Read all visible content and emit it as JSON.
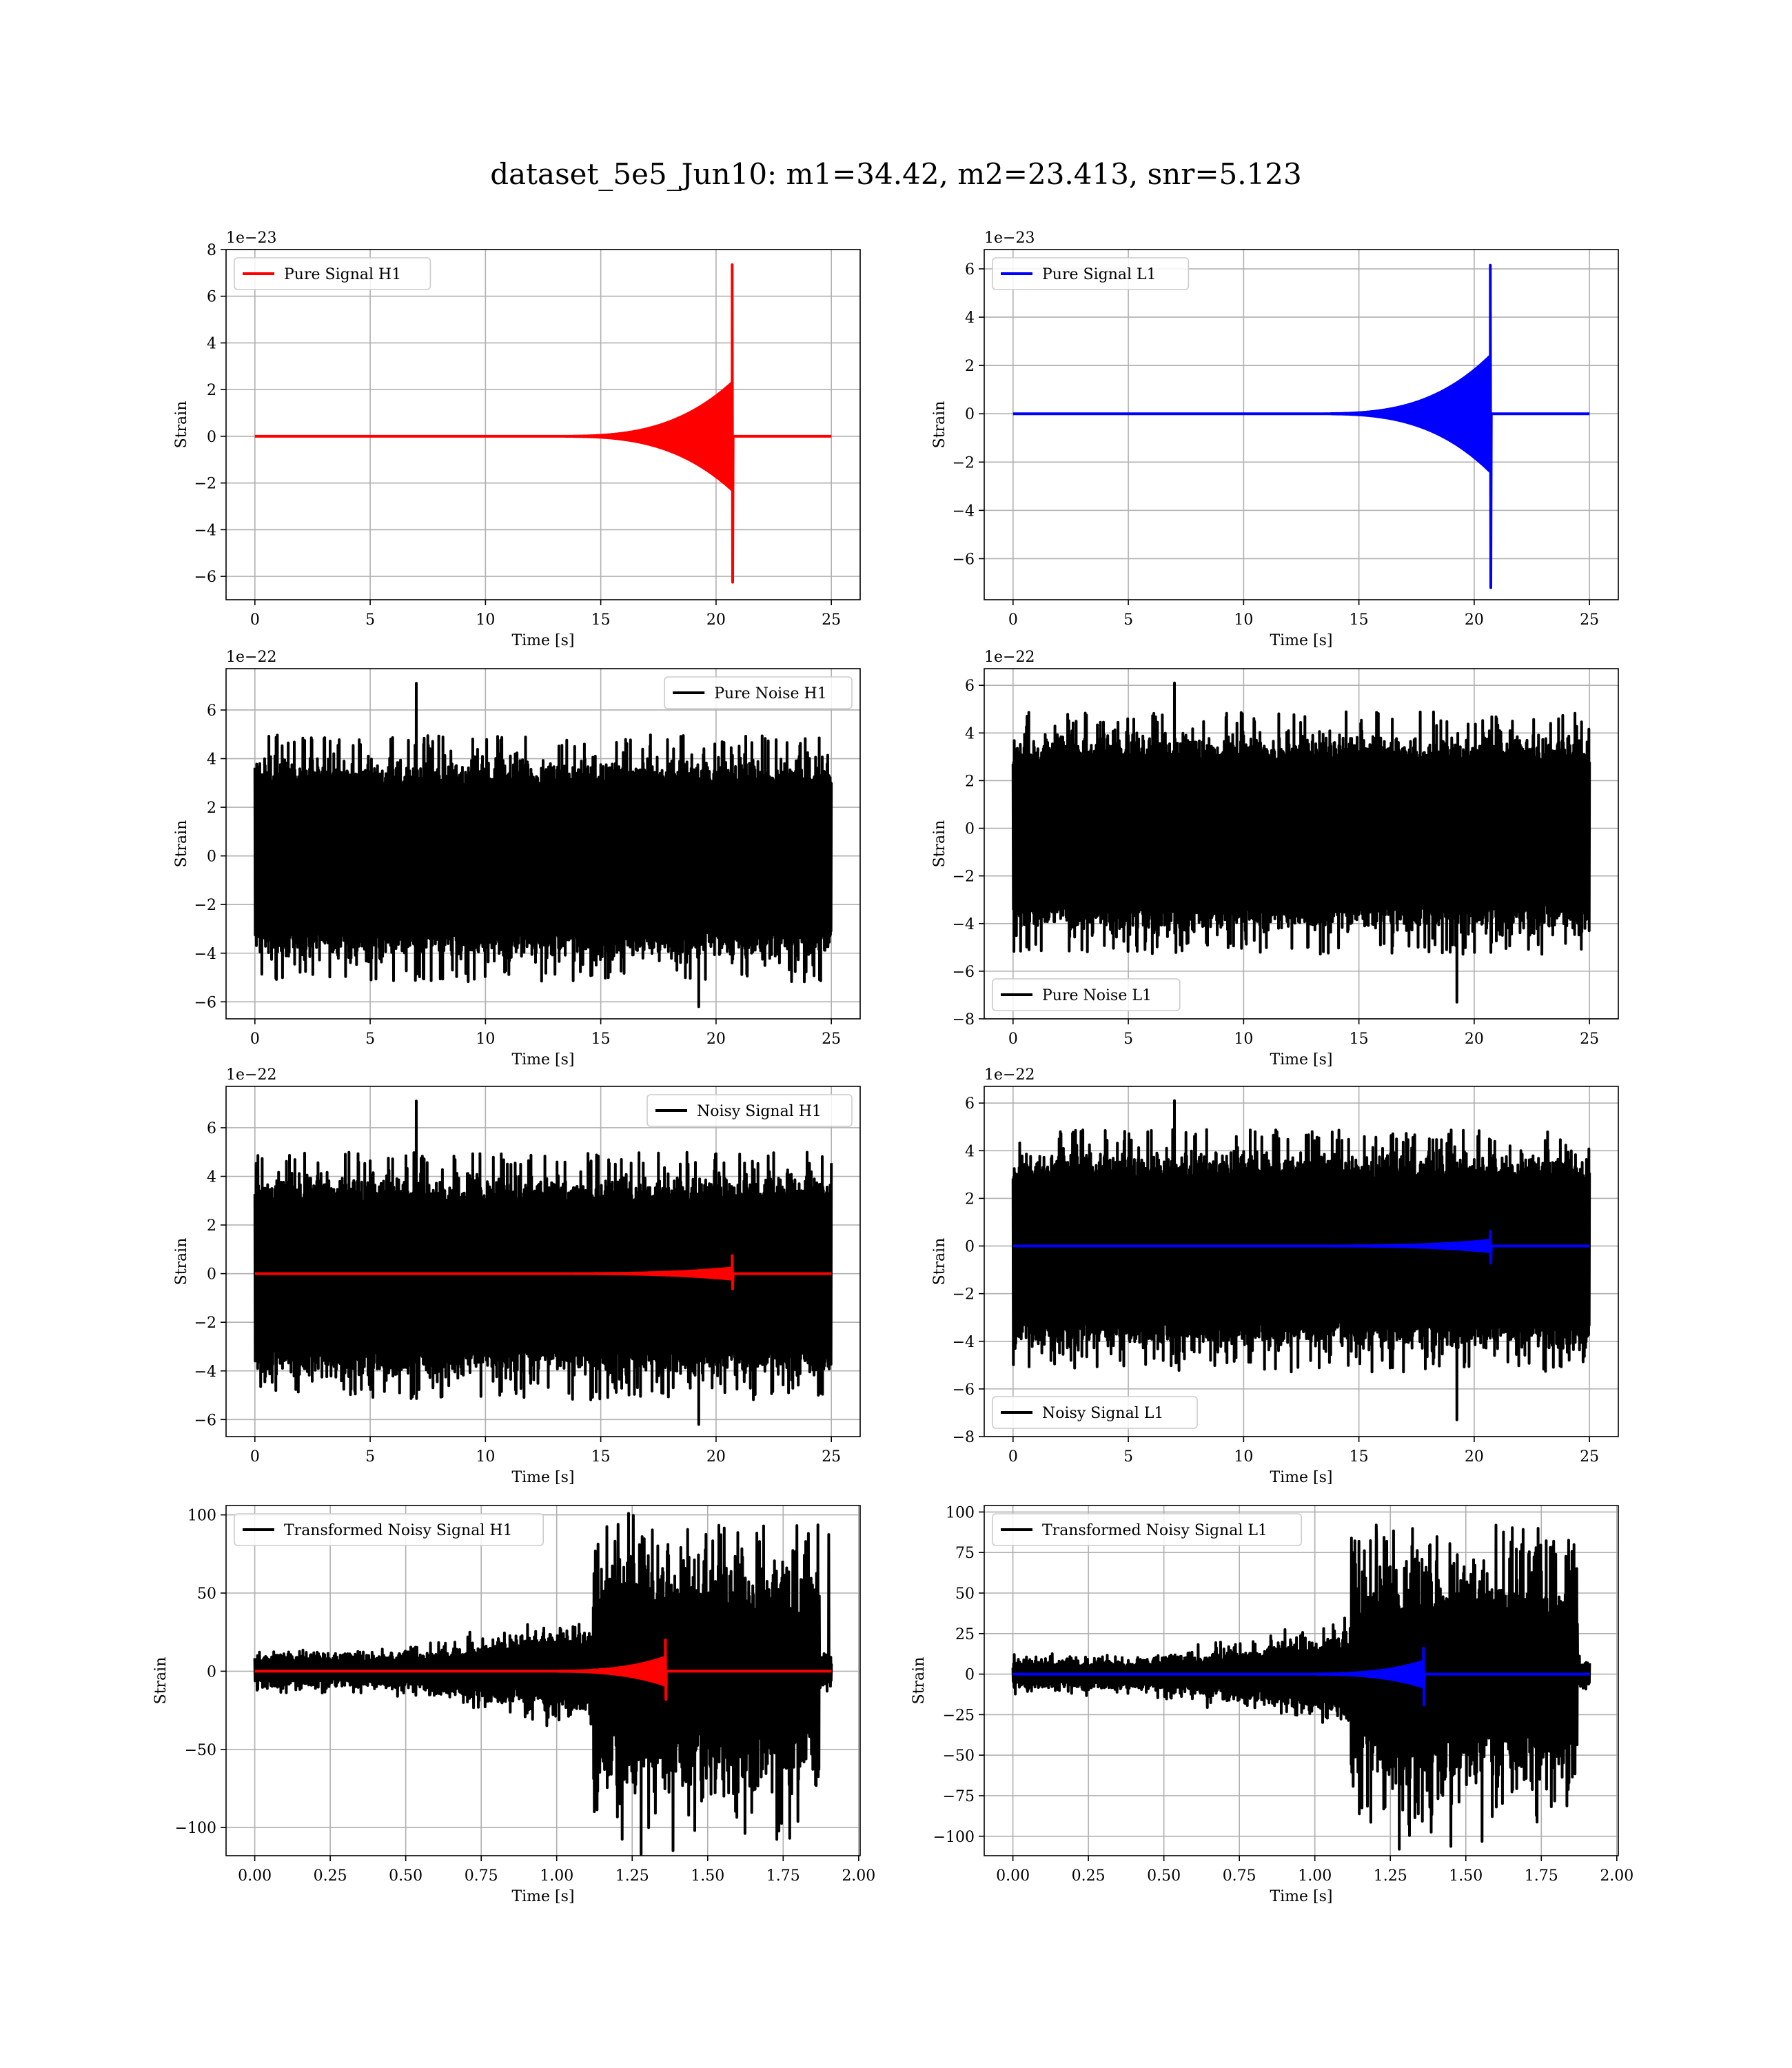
{
  "figure": {
    "title": "dataset_5e5_Jun10: m1=34.42, m2=23.413, snr=5.123"
  },
  "chart_data": [
    {
      "type": "line",
      "id": "pure-signal-h1",
      "xlabel": "Time [s]",
      "ylabel": "Strain",
      "offset_text": "1e−23",
      "xlim": [
        -1.25,
        26.25
      ],
      "ylim": [
        -7.0,
        8.0
      ],
      "xticks": [
        0,
        5,
        10,
        15,
        20,
        25
      ],
      "yticks": [
        -6,
        -4,
        -2,
        0,
        2,
        4,
        6,
        8
      ],
      "legend": "top-left",
      "grid": true,
      "series": [
        {
          "name": "Pure Signal H1",
          "color": "#ff0000",
          "kind": "chirp",
          "t_start": 0,
          "t_end": 25,
          "t_merger": 20.7,
          "baseline": 0,
          "peak_positive": 7.35,
          "peak_negative": -6.25,
          "inspiral_envelope_end": 2.3
        }
      ]
    },
    {
      "type": "line",
      "id": "pure-signal-l1",
      "xlabel": "Time [s]",
      "ylabel": "Strain",
      "offset_text": "1e−23",
      "xlim": [
        -1.25,
        26.25
      ],
      "ylim": [
        -7.7,
        6.8
      ],
      "xticks": [
        0,
        5,
        10,
        15,
        20,
        25
      ],
      "yticks": [
        -6,
        -4,
        -2,
        0,
        2,
        4,
        6
      ],
      "legend": "top-left",
      "grid": true,
      "series": [
        {
          "name": "Pure Signal L1",
          "color": "#0000ff",
          "kind": "chirp",
          "t_start": 0,
          "t_end": 25,
          "t_merger": 20.7,
          "baseline": 0,
          "peak_positive": 6.15,
          "peak_negative": -7.2,
          "inspiral_envelope_end": 2.4
        }
      ]
    },
    {
      "type": "line",
      "id": "pure-noise-h1",
      "xlabel": "Time [s]",
      "ylabel": "Strain",
      "offset_text": "1e−22",
      "xlim": [
        -1.25,
        26.25
      ],
      "ylim": [
        -6.7,
        7.7
      ],
      "xticks": [
        0,
        5,
        10,
        15,
        20,
        25
      ],
      "yticks": [
        -6,
        -4,
        -2,
        0,
        2,
        4,
        6
      ],
      "legend": "top-right",
      "grid": true,
      "series": [
        {
          "name": "Pure Noise H1",
          "color": "#000000",
          "kind": "noise",
          "t_start": 0,
          "t_end": 25,
          "band": [
            -3.5,
            3.3
          ],
          "peak_positive": 7.1,
          "peak_negative": -6.2
        }
      ]
    },
    {
      "type": "line",
      "id": "pure-noise-l1",
      "xlabel": "Time [s]",
      "ylabel": "Strain",
      "offset_text": "1e−22",
      "xlim": [
        -1.25,
        26.25
      ],
      "ylim": [
        -8.0,
        6.7
      ],
      "xticks": [
        0,
        5,
        10,
        15,
        20,
        25
      ],
      "yticks": [
        -8,
        -6,
        -4,
        -2,
        0,
        2,
        4,
        6
      ],
      "legend": "bottom-left",
      "grid": true,
      "series": [
        {
          "name": "Pure Noise L1",
          "color": "#000000",
          "kind": "noise",
          "t_start": 0,
          "t_end": 25,
          "band": [
            -3.6,
            3.2
          ],
          "peak_positive": 6.1,
          "peak_negative": -7.3
        }
      ]
    },
    {
      "type": "line",
      "id": "noisy-signal-h1",
      "xlabel": "Time [s]",
      "ylabel": "Strain",
      "offset_text": "1e−22",
      "xlim": [
        -1.25,
        26.25
      ],
      "ylim": [
        -6.7,
        7.7
      ],
      "xticks": [
        0,
        5,
        10,
        15,
        20,
        25
      ],
      "yticks": [
        -6,
        -4,
        -2,
        0,
        2,
        4,
        6
      ],
      "legend": "top-right",
      "grid": true,
      "series": [
        {
          "name": "Noisy Signal H1",
          "color": "#000000",
          "kind": "noise",
          "t_start": 0,
          "t_end": 25,
          "band": [
            -3.5,
            3.3
          ],
          "peak_positive": 7.1,
          "peak_negative": -6.2
        },
        {
          "name": "",
          "color": "#ff0000",
          "kind": "chirp",
          "t_start": 0,
          "t_end": 25,
          "t_merger": 20.7,
          "baseline": 0,
          "peak_positive": 0.74,
          "peak_negative": -0.63,
          "inspiral_envelope_end": 0.23
        }
      ]
    },
    {
      "type": "line",
      "id": "noisy-signal-l1",
      "xlabel": "Time [s]",
      "ylabel": "Strain",
      "offset_text": "1e−22",
      "xlim": [
        -1.25,
        26.25
      ],
      "ylim": [
        -8.0,
        6.7
      ],
      "xticks": [
        0,
        5,
        10,
        15,
        20,
        25
      ],
      "yticks": [
        -8,
        -6,
        -4,
        -2,
        0,
        2,
        4,
        6
      ],
      "legend": "bottom-left",
      "grid": true,
      "series": [
        {
          "name": "Noisy Signal L1",
          "color": "#000000",
          "kind": "noise",
          "t_start": 0,
          "t_end": 25,
          "band": [
            -3.6,
            3.2
          ],
          "peak_positive": 6.1,
          "peak_negative": -7.3
        },
        {
          "name": "",
          "color": "#0000ff",
          "kind": "chirp",
          "t_start": 0,
          "t_end": 25,
          "t_merger": 20.7,
          "baseline": 0,
          "peak_positive": 0.62,
          "peak_negative": -0.72,
          "inspiral_envelope_end": 0.24
        }
      ]
    },
    {
      "type": "line",
      "id": "transformed-noisy-signal-h1",
      "xlabel": "Time [s]",
      "ylabel": "Strain",
      "offset_text": "",
      "xlim": [
        -0.095,
        2.005
      ],
      "ylim": [
        -118,
        106
      ],
      "xticks": [
        0.0,
        0.25,
        0.5,
        0.75,
        1.0,
        1.25,
        1.5,
        1.75,
        2.0
      ],
      "xticklabels": [
        "0.00",
        "0.25",
        "0.50",
        "0.75",
        "1.00",
        "1.25",
        "1.50",
        "1.75",
        "2.00"
      ],
      "yticks": [
        -100,
        -50,
        0,
        50,
        100
      ],
      "legend": "top-left",
      "grid": true,
      "series": [
        {
          "name": "Transformed Noisy Signal H1",
          "color": "#000000",
          "kind": "whitened",
          "t_start": 0,
          "t_end": 1.91,
          "t_jump": 1.12,
          "t_drop": 1.87,
          "low_band": 8,
          "mid_band": 22,
          "high_band": 55,
          "peak_positive": 94,
          "peak_negative": -117
        },
        {
          "name": "",
          "color": "#ff0000",
          "kind": "chirp",
          "t_start": 0,
          "t_end": 1.91,
          "t_merger": 1.36,
          "baseline": 0,
          "peak_positive": 20,
          "peak_negative": -18,
          "inspiral_envelope_end": 9,
          "inspiral_start": 0.95
        }
      ]
    },
    {
      "type": "line",
      "id": "transformed-noisy-signal-l1",
      "xlabel": "Time [s]",
      "ylabel": "Strain",
      "offset_text": "",
      "xlim": [
        -0.095,
        2.005
      ],
      "ylim": [
        -112,
        104
      ],
      "xticks": [
        0.0,
        0.25,
        0.5,
        0.75,
        1.0,
        1.25,
        1.5,
        1.75,
        2.0
      ],
      "xticklabels": [
        "0.00",
        "0.25",
        "0.50",
        "0.75",
        "1.00",
        "1.25",
        "1.50",
        "1.75",
        "2.00"
      ],
      "yticks": [
        -100,
        -75,
        -50,
        -25,
        0,
        25,
        50,
        75,
        100
      ],
      "legend": "top-left",
      "grid": true,
      "series": [
        {
          "name": "Transformed Noisy Signal L1",
          "color": "#000000",
          "kind": "whitened",
          "t_start": 0,
          "t_end": 1.91,
          "t_jump": 1.12,
          "t_drop": 1.87,
          "low_band": 7,
          "mid_band": 20,
          "high_band": 52,
          "peak_positive": 92,
          "peak_negative": -108
        },
        {
          "name": "",
          "color": "#0000ff",
          "kind": "chirp",
          "t_start": 0,
          "t_end": 1.91,
          "t_merger": 1.36,
          "baseline": 0,
          "peak_positive": 16,
          "peak_negative": -19,
          "inspiral_envelope_end": 8,
          "inspiral_start": 0.95
        }
      ]
    }
  ]
}
